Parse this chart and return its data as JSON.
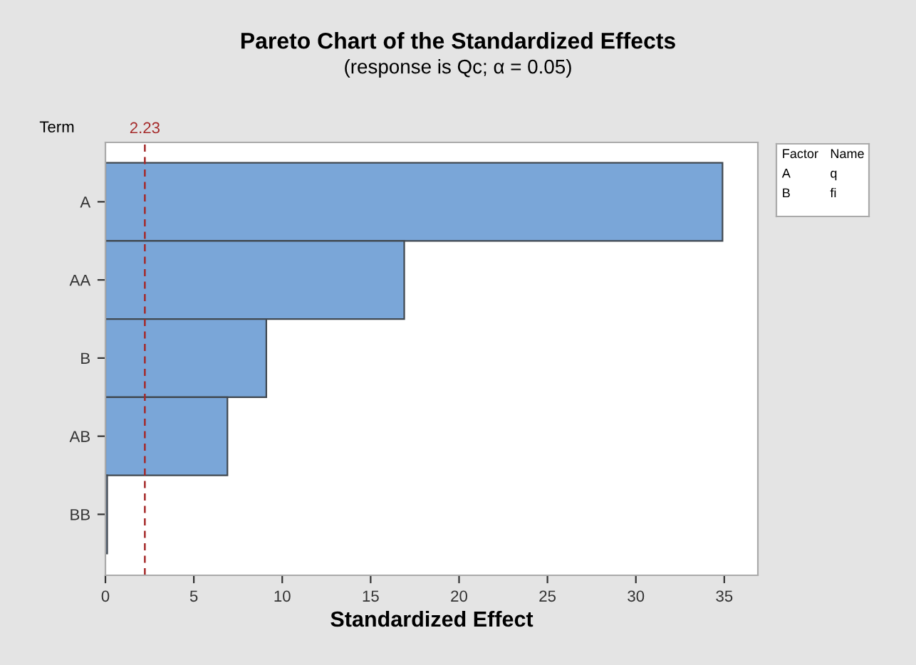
{
  "chart_data": {
    "type": "bar",
    "orientation": "horizontal",
    "title": "Pareto Chart of the Standardized Effects",
    "subtitle": "(response is Qc; α = 0.05)",
    "xlabel": "Standardized Effect",
    "ylabel": "Term",
    "categories": [
      "A",
      "AA",
      "B",
      "AB",
      "BB"
    ],
    "values": [
      34.9,
      16.9,
      9.1,
      6.9,
      0.1
    ],
    "color": "#7aa6d8",
    "xlim": [
      0,
      36.9
    ],
    "xticks": [
      0,
      5,
      10,
      15,
      20,
      25,
      30,
      35
    ],
    "ref_lines": [
      {
        "axis": "x",
        "value": 2.23,
        "label": "2.23",
        "color": "#a52a2a",
        "line_style": "dashed"
      }
    ],
    "annotations": [
      "Factor",
      "Name",
      "A",
      "q",
      "B",
      "fi"
    ],
    "grid": false
  }
}
